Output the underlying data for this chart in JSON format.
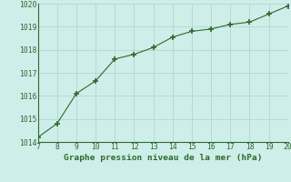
{
  "x": [
    7,
    8,
    9,
    10,
    11,
    12,
    13,
    14,
    15,
    16,
    17,
    18,
    19,
    20
  ],
  "y": [
    1014.2,
    1014.8,
    1016.1,
    1016.65,
    1017.6,
    1017.8,
    1018.1,
    1018.55,
    1018.8,
    1018.9,
    1019.1,
    1019.2,
    1019.55,
    1019.9
  ],
  "xlim": [
    7,
    20
  ],
  "ylim": [
    1014,
    1020
  ],
  "xticks": [
    7,
    8,
    9,
    10,
    11,
    12,
    13,
    14,
    15,
    16,
    17,
    18,
    19,
    20
  ],
  "yticks": [
    1014,
    1015,
    1016,
    1017,
    1018,
    1019,
    1020
  ],
  "line_color": "#2d6a2d",
  "marker_color": "#2d6a2d",
  "bg_color": "#ceeee9",
  "grid_color": "#b8d8d4",
  "xlabel": "Graphe pression niveau de la mer (hPa)",
  "xlabel_color": "#2d6a2d",
  "tick_color": "#2d6a2d",
  "spine_color": "#2d6a2d",
  "tick_fontsize": 5.8,
  "xlabel_fontsize": 6.8
}
